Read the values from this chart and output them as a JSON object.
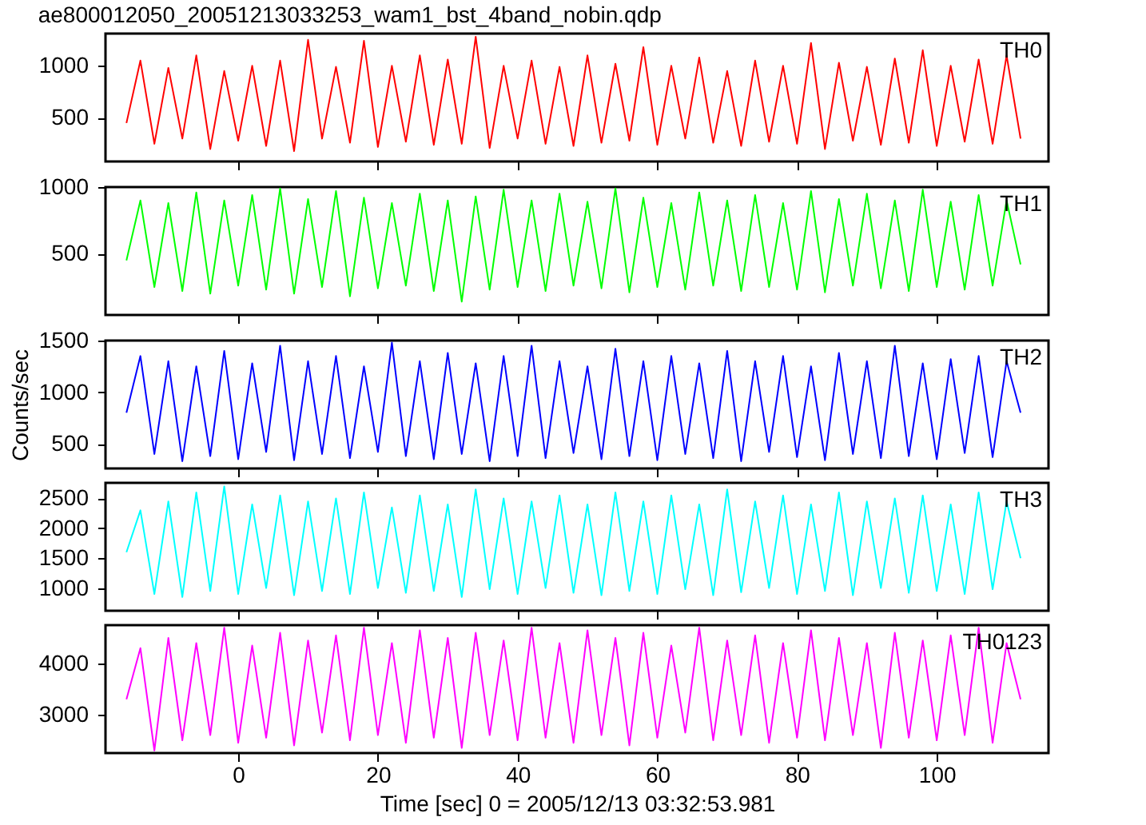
{
  "chart_data": [
    {
      "type": "line",
      "title": "ae800012050_20051213033253_wam1_bst_4band_nobin.qdp",
      "annotations": [
        "TH0"
      ],
      "tick_labels": "y",
      "grid": false,
      "marker": "none",
      "line_style": "solid",
      "x": [
        -16,
        -14,
        -12,
        -10,
        -8,
        -6,
        -4,
        -2,
        0,
        2,
        4,
        6,
        8,
        10,
        12,
        14,
        16,
        18,
        20,
        22,
        24,
        26,
        28,
        30,
        32,
        34,
        36,
        38,
        40,
        42,
        44,
        46,
        48,
        50,
        52,
        54,
        56,
        58,
        60,
        62,
        64,
        66,
        68,
        70,
        72,
        74,
        76,
        78,
        80,
        82,
        84,
        86,
        88,
        90,
        92,
        94,
        96,
        98,
        100,
        102,
        104,
        106,
        108,
        110,
        112
      ],
      "series": [
        {
          "color": "#ff0000",
          "values": [
            450,
            1050,
            250,
            980,
            300,
            1100,
            200,
            950,
            280,
            1000,
            230,
            1050,
            180,
            1250,
            300,
            990,
            260,
            1240,
            220,
            1000,
            270,
            1100,
            240,
            1060,
            250,
            1280,
            210,
            1000,
            300,
            1050,
            250,
            990,
            230,
            1100,
            260,
            1020,
            280,
            1180,
            240,
            1000,
            300,
            1080,
            260,
            950,
            230,
            1050,
            270,
            1000,
            250,
            1220,
            200,
            1030,
            280,
            990,
            240,
            1070,
            260,
            1150,
            230,
            1000,
            270,
            1060,
            250,
            1100,
            300
          ]
        }
      ],
      "xlim": [
        -19,
        116
      ],
      "xticks": [
        0,
        20,
        40,
        60,
        80,
        100
      ],
      "ylim": [
        80,
        1310
      ],
      "yticks": [
        500,
        1000
      ]
    },
    {
      "type": "line",
      "annotations": [
        "TH1"
      ],
      "tick_labels": "y",
      "grid": false,
      "marker": "none",
      "line_style": "solid",
      "x": [
        -16,
        -14,
        -12,
        -10,
        -8,
        -6,
        -4,
        -2,
        0,
        2,
        4,
        6,
        8,
        10,
        12,
        14,
        16,
        18,
        20,
        22,
        24,
        26,
        28,
        30,
        32,
        34,
        36,
        38,
        40,
        42,
        44,
        46,
        48,
        50,
        52,
        54,
        56,
        58,
        60,
        62,
        64,
        66,
        68,
        70,
        72,
        74,
        76,
        78,
        80,
        82,
        84,
        86,
        88,
        90,
        92,
        94,
        96,
        98,
        100,
        102,
        104,
        106,
        108,
        110,
        112
      ],
      "series": [
        {
          "color": "#00ff00",
          "values": [
            450,
            900,
            250,
            880,
            220,
            960,
            200,
            900,
            260,
            940,
            230,
            990,
            200,
            910,
            250,
            970,
            180,
            920,
            240,
            880,
            260,
            950,
            220,
            900,
            140,
            930,
            230,
            980,
            250,
            900,
            220,
            950,
            260,
            890,
            240,
            990,
            210,
            920,
            250,
            880,
            230,
            960,
            260,
            900,
            220,
            940,
            250,
            880,
            230,
            970,
            210,
            910,
            260,
            950,
            240,
            900,
            220,
            980,
            250,
            890,
            230,
            940,
            260,
            900,
            420
          ]
        }
      ],
      "xlim": [
        -19,
        116
      ],
      "xticks": [
        0,
        20,
        40,
        60,
        80,
        100
      ],
      "ylim": [
        40,
        1000
      ],
      "yticks": [
        500,
        1000
      ]
    },
    {
      "type": "line",
      "annotations": [
        "TH2"
      ],
      "ylabel": "Counts/sec",
      "tick_labels": "y",
      "grid": false,
      "marker": "none",
      "line_style": "solid",
      "x": [
        -16,
        -14,
        -12,
        -10,
        -8,
        -6,
        -4,
        -2,
        0,
        2,
        4,
        6,
        8,
        10,
        12,
        14,
        16,
        18,
        20,
        22,
        24,
        26,
        28,
        30,
        32,
        34,
        36,
        38,
        40,
        42,
        44,
        46,
        48,
        50,
        52,
        54,
        56,
        58,
        60,
        62,
        64,
        66,
        68,
        70,
        72,
        74,
        76,
        78,
        80,
        82,
        84,
        86,
        88,
        90,
        92,
        94,
        96,
        98,
        100,
        102,
        104,
        106,
        108,
        110,
        112
      ],
      "series": [
        {
          "color": "#0000ff",
          "values": [
            800,
            1350,
            400,
            1300,
            330,
            1250,
            380,
            1400,
            350,
            1280,
            420,
            1450,
            340,
            1300,
            400,
            1350,
            360,
            1250,
            420,
            1480,
            380,
            1300,
            350,
            1380,
            400,
            1280,
            330,
            1350,
            380,
            1450,
            360,
            1300,
            410,
            1250,
            350,
            1420,
            380,
            1300,
            340,
            1350,
            400,
            1280,
            360,
            1400,
            330,
            1300,
            420,
            1350,
            370,
            1250,
            340,
            1380,
            400,
            1300,
            360,
            1450,
            380,
            1280,
            350,
            1320,
            410,
            1350,
            370,
            1300,
            800
          ]
        }
      ],
      "xlim": [
        -19,
        116
      ],
      "xticks": [
        0,
        20,
        40,
        60,
        80,
        100
      ],
      "ylim": [
        260,
        1500
      ],
      "yticks": [
        500,
        1000,
        1500
      ]
    },
    {
      "type": "line",
      "annotations": [
        "TH3"
      ],
      "tick_labels": "y",
      "grid": false,
      "marker": "none",
      "line_style": "solid",
      "x": [
        -16,
        -14,
        -12,
        -10,
        -8,
        -6,
        -4,
        -2,
        0,
        2,
        4,
        6,
        8,
        10,
        12,
        14,
        16,
        18,
        20,
        22,
        24,
        26,
        28,
        30,
        32,
        34,
        36,
        38,
        40,
        42,
        44,
        46,
        48,
        50,
        52,
        54,
        56,
        58,
        60,
        62,
        64,
        66,
        68,
        70,
        72,
        74,
        76,
        78,
        80,
        82,
        84,
        86,
        88,
        90,
        92,
        94,
        96,
        98,
        100,
        102,
        104,
        106,
        108,
        110,
        112
      ],
      "series": [
        {
          "color": "#00ffff",
          "values": [
            1600,
            2300,
            900,
            2450,
            850,
            2600,
            950,
            2700,
            900,
            2400,
            1000,
            2550,
            880,
            2450,
            950,
            2500,
            900,
            2600,
            1000,
            2350,
            920,
            2550,
            950,
            2400,
            850,
            2650,
            980,
            2500,
            900,
            2450,
            1000,
            2550,
            920,
            2400,
            880,
            2600,
            950,
            2450,
            900,
            2550,
            980,
            2400,
            880,
            2650,
            930,
            2450,
            1000,
            2550,
            900,
            2400,
            950,
            2600,
            880,
            2450,
            1000,
            2500,
            920,
            2550,
            950,
            2400,
            900,
            2600,
            980,
            2450,
            1500
          ]
        }
      ],
      "xlim": [
        -19,
        116
      ],
      "xticks": [
        0,
        20,
        40,
        60,
        80,
        100
      ],
      "ylim": [
        620,
        2760
      ],
      "yticks": [
        1000,
        1500,
        2000,
        2500
      ]
    },
    {
      "type": "line",
      "annotations": [
        "TH0123"
      ],
      "xlabel": "Time [sec] 0 = 2005/12/13 03:32:53.981",
      "grid": false,
      "marker": "none",
      "line_style": "solid",
      "x": [
        -16,
        -14,
        -12,
        -10,
        -8,
        -6,
        -4,
        -2,
        0,
        2,
        4,
        6,
        8,
        10,
        12,
        14,
        16,
        18,
        20,
        22,
        24,
        26,
        28,
        30,
        32,
        34,
        36,
        38,
        40,
        42,
        44,
        46,
        48,
        50,
        52,
        54,
        56,
        58,
        60,
        62,
        64,
        66,
        68,
        70,
        72,
        74,
        76,
        78,
        80,
        82,
        84,
        86,
        88,
        90,
        92,
        94,
        96,
        98,
        100,
        102,
        104,
        106,
        108,
        110,
        112
      ],
      "series": [
        {
          "color": "#ff00ff",
          "values": [
            3300,
            4300,
            2300,
            4500,
            2500,
            4400,
            2600,
            4700,
            2450,
            4350,
            2550,
            4600,
            2400,
            4450,
            2650,
            4550,
            2500,
            4700,
            2600,
            4400,
            2450,
            4650,
            2550,
            4500,
            2350,
            4600,
            2600,
            4450,
            2500,
            4700,
            2550,
            4400,
            2450,
            4650,
            2600,
            4500,
            2400,
            4600,
            2550,
            4350,
            2650,
            4700,
            2500,
            4450,
            2600,
            4550,
            2450,
            4400,
            2550,
            4650,
            2500,
            4500,
            2600,
            4400,
            2350,
            4600,
            2550,
            4450,
            2500,
            4550,
            2600,
            4700,
            2450,
            4400,
            3300
          ]
        }
      ],
      "xlim": [
        -19,
        116
      ],
      "xticks": [
        0,
        20,
        40,
        60,
        80,
        100
      ],
      "ylim": [
        2250,
        4750
      ],
      "yticks": [
        3000,
        4000
      ]
    }
  ]
}
